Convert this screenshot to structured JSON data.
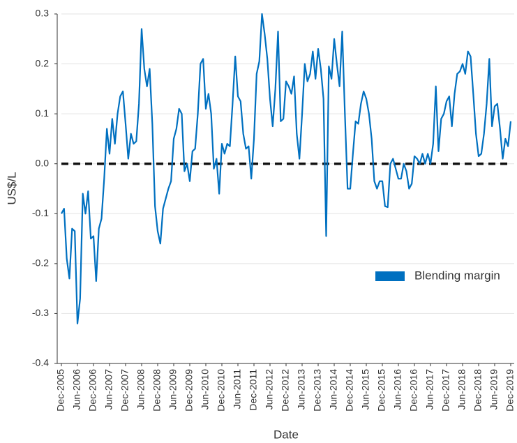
{
  "chart_data": {
    "type": "line",
    "xlabel": "Date",
    "ylabel": "US$/L",
    "categories": [
      "Dec-2005",
      null,
      null,
      null,
      null,
      null,
      "Jun-2006",
      null,
      null,
      null,
      null,
      null,
      "Dec-2006",
      null,
      null,
      null,
      null,
      null,
      "Jun-2007",
      null,
      null,
      null,
      null,
      null,
      "Dec-2007",
      null,
      null,
      null,
      null,
      null,
      "Jun-2008",
      null,
      null,
      null,
      null,
      null,
      "Dec-2008",
      null,
      null,
      null,
      null,
      null,
      "Jun-2009",
      null,
      null,
      null,
      null,
      null,
      "Dec-2009",
      null,
      null,
      null,
      null,
      null,
      "Jun-2010",
      null,
      null,
      null,
      null,
      null,
      "Dec-2010",
      null,
      null,
      null,
      null,
      null,
      "Jun-2011",
      null,
      null,
      null,
      null,
      null,
      "Dec-2011",
      null,
      null,
      null,
      null,
      null,
      "Jun-2012",
      null,
      null,
      null,
      null,
      null,
      "Dec-2012",
      null,
      null,
      null,
      null,
      null,
      "Jun-2013",
      null,
      null,
      null,
      null,
      null,
      "Dec-2013",
      null,
      null,
      null,
      null,
      null,
      "Jun-2014",
      null,
      null,
      null,
      null,
      null,
      "Dec-2014",
      null,
      null,
      null,
      null,
      null,
      "Jun-2015",
      null,
      null,
      null,
      null,
      null,
      "Dec-2015",
      null,
      null,
      null,
      null,
      null,
      "Jun-2016",
      null,
      null,
      null,
      null,
      null,
      "Dec-2016",
      null,
      null,
      null,
      null,
      null,
      "Jun-2017",
      null,
      null,
      null,
      null,
      null,
      "Dec-2017",
      null,
      null,
      null,
      null,
      null,
      "Jun-2018",
      null,
      null,
      null,
      null,
      null,
      "Dec-2018",
      null,
      null,
      null,
      null,
      null,
      "Jun-2019",
      null,
      null,
      null,
      null,
      null,
      "Dec-2019"
    ],
    "series": [
      {
        "name": "Blending margin",
        "color": "#0070c0",
        "values": [
          -0.1,
          -0.09,
          -0.19,
          -0.23,
          -0.13,
          -0.135,
          -0.32,
          -0.27,
          -0.06,
          -0.1,
          -0.055,
          -0.15,
          -0.145,
          -0.235,
          -0.13,
          -0.11,
          -0.03,
          0.07,
          0.02,
          0.09,
          0.04,
          0.1,
          0.135,
          0.145,
          0.08,
          0.01,
          0.06,
          0.04,
          0.045,
          0.12,
          0.27,
          0.19,
          0.155,
          0.19,
          0.08,
          -0.085,
          -0.135,
          -0.16,
          -0.09,
          -0.07,
          -0.05,
          -0.035,
          0.05,
          0.07,
          0.11,
          0.1,
          -0.015,
          0.0,
          -0.035,
          0.025,
          0.03,
          0.1,
          0.2,
          0.21,
          0.11,
          0.14,
          0.1,
          -0.01,
          0.01,
          -0.06,
          0.04,
          0.02,
          0.04,
          0.035,
          0.12,
          0.215,
          0.135,
          0.125,
          0.06,
          0.03,
          0.035,
          -0.03,
          0.05,
          0.18,
          0.205,
          0.3,
          0.26,
          0.21,
          0.13,
          0.075,
          0.15,
          0.265,
          0.085,
          0.09,
          0.165,
          0.155,
          0.14,
          0.175,
          0.06,
          0.01,
          0.1,
          0.2,
          0.165,
          0.18,
          0.225,
          0.17,
          0.23,
          0.19,
          0.13,
          -0.145,
          0.195,
          0.17,
          0.25,
          0.2,
          0.155,
          0.265,
          0.1,
          -0.05,
          -0.05,
          0.02,
          0.085,
          0.08,
          0.12,
          0.145,
          0.13,
          0.1,
          0.05,
          -0.035,
          -0.05,
          -0.035,
          -0.035,
          -0.085,
          -0.087,
          0.0,
          0.01,
          -0.01,
          -0.03,
          -0.03,
          0.0,
          -0.015,
          -0.05,
          -0.04,
          0.015,
          0.01,
          0.0,
          0.02,
          0.0,
          0.02,
          0.0,
          0.04,
          0.155,
          0.025,
          0.09,
          0.1,
          0.125,
          0.135,
          0.075,
          0.14,
          0.18,
          0.185,
          0.2,
          0.18,
          0.225,
          0.215,
          0.14,
          0.06,
          0.015,
          0.02,
          0.06,
          0.12,
          0.21,
          0.075,
          0.115,
          0.12,
          0.07,
          0.01,
          0.05,
          0.035,
          0.085
        ]
      }
    ],
    "ylim": [
      -0.4,
      0.3
    ],
    "yticks": [
      -0.4,
      -0.3,
      -0.2,
      -0.1,
      {
        "value": 0,
        "label": "0.0"
      },
      0.1,
      0.2,
      0.3
    ],
    "grid": true,
    "reference_line": {
      "value": 0,
      "color": "#111111",
      "style": "dashed"
    },
    "legend": "center right"
  }
}
